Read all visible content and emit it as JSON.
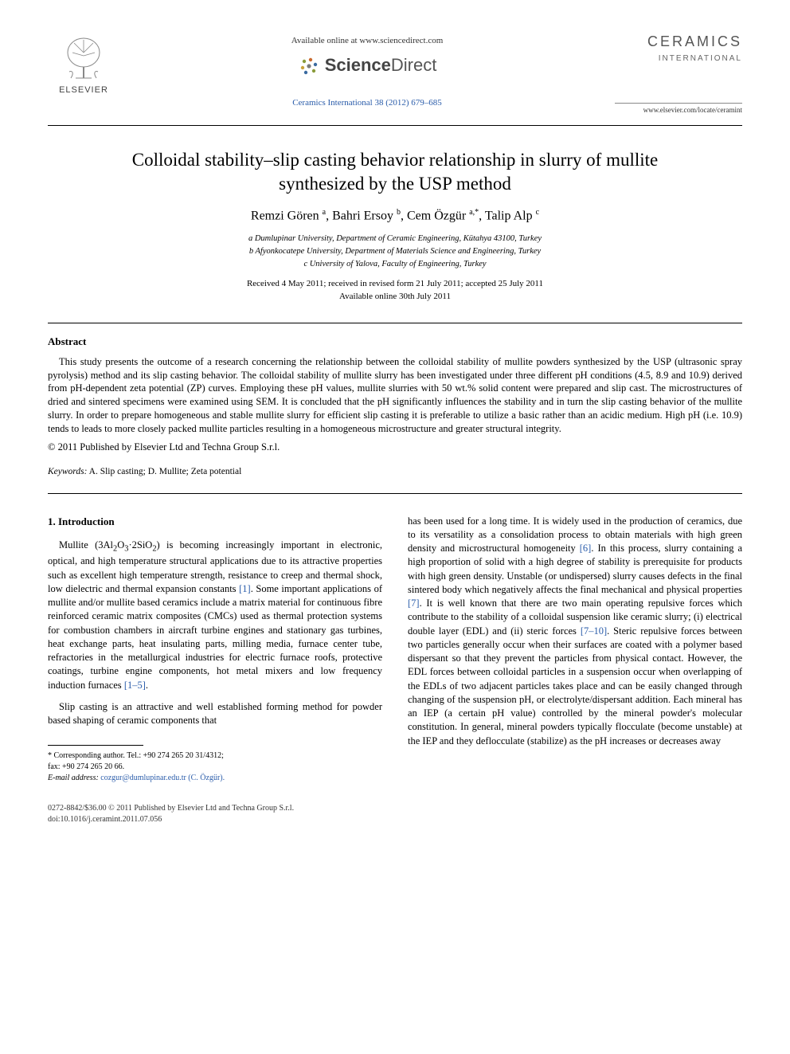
{
  "header": {
    "elsevier_label": "ELSEVIER",
    "available_line": "Available online at www.sciencedirect.com",
    "sd_brand_a": "Science",
    "sd_brand_b": "Direct",
    "citation": "Ceramics International 38 (2012) 679–685",
    "journal_title": "CERAMICS",
    "journal_sub": "INTERNATIONAL",
    "journal_url": "www.elsevier.com/locate/ceramint"
  },
  "article": {
    "title": "Colloidal stability–slip casting behavior relationship in slurry of mullite synthesized by the USP method",
    "authors_html": "Remzi Gören <sup>a</sup>, Bahri Ersoy <sup>b</sup>, Cem Özgür <sup>a,*</sup>, Talip Alp <sup>c</sup>",
    "affiliations": {
      "a": "a Dumlupinar University, Department of Ceramic Engineering, Kütahya 43100, Turkey",
      "b": "b Afyonkocatepe University, Department of Materials Science and Engineering, Turkey",
      "c": "c University of Yalova, Faculty of Engineering, Turkey"
    },
    "dates_line1": "Received 4 May 2011; received in revised form 21 July 2011; accepted 25 July 2011",
    "dates_line2": "Available online 30th July 2011"
  },
  "abstract": {
    "heading": "Abstract",
    "body": "This study presents the outcome of a research concerning the relationship between the colloidal stability of mullite powders synthesized by the USP (ultrasonic spray pyrolysis) method and its slip casting behavior. The colloidal stability of mullite slurry has been investigated under three different pH conditions (4.5, 8.9 and 10.9) derived from pH-dependent zeta potential (ZP) curves. Employing these pH values, mullite slurries with 50 wt.% solid content were prepared and slip cast. The microstructures of dried and sintered specimens were examined using SEM. It is concluded that the pH significantly influences the stability and in turn the slip casting behavior of the mullite slurry. In order to prepare homogeneous and stable mullite slurry for efficient slip casting it is preferable to utilize a basic rather than an acidic medium. High pH (i.e. 10.9) tends to leads to more closely packed mullite particles resulting in a homogeneous microstructure and greater structural integrity.",
    "copyright": "© 2011 Published by Elsevier Ltd and Techna Group S.r.l.",
    "keywords_label": "Keywords:",
    "keywords": " A. Slip casting; D. Mullite; Zeta potential"
  },
  "body": {
    "section_heading": "1. Introduction",
    "col_left_p1_a": "Mullite (3Al",
    "col_left_p1_b": "O",
    "col_left_p1_c": "·2SiO",
    "col_left_p1_d": ") is becoming increasingly important in electronic, optical, and high temperature structural applications due to its attractive properties such as excellent high temperature strength, resistance to creep and thermal shock, low dielectric and thermal expansion constants ",
    "ref1": "[1]",
    "col_left_p1_e": ". Some important applications of mullite and/or mullite based ceramics include a matrix material for continuous fibre reinforced ceramic matrix composites (CMCs) used as thermal protection systems for combustion chambers in aircraft turbine engines and stationary gas turbines, heat exchange parts, heat insulating parts, milling media, furnace center tube, refractories in the metallurgical industries for electric furnace roofs, protective coatings, turbine engine components, hot metal mixers and low frequency induction furnaces ",
    "ref1_5": "[1–5]",
    "period": ".",
    "col_left_p2": "Slip casting is an attractive and well established forming method for powder based shaping of ceramic components that",
    "col_right_p1_a": "has been used for a long time. It is widely used in the production of ceramics, due to its versatility as a consolidation process to obtain materials with high green density and microstructural homogeneity ",
    "ref6": "[6]",
    "col_right_p1_b": ". In this process, slurry containing a high proportion of solid with a high degree of stability is prerequisite for products with high green density. Unstable (or undispersed) slurry causes defects in the final sintered body which negatively affects the final mechanical and physical properties ",
    "ref7": "[7]",
    "col_right_p1_c": ". It is well known that there are two main operating repulsive forces which contribute to the stability of a colloidal suspension like ceramic slurry; (i) electrical double layer (EDL) and (ii) steric forces ",
    "ref7_10": "[7–10]",
    "col_right_p1_d": ". Steric repulsive forces between two particles generally occur when their surfaces are coated with a polymer based dispersant so that they prevent the particles from physical contact. However, the EDL forces between colloidal particles in a suspension occur when overlapping of the EDLs of two adjacent particles takes place and can be easily changed through changing of the suspension pH, or electrolyte/dispersant addition. Each mineral has an IEP (a certain pH value) controlled by the mineral powder's molecular constitution. In general, mineral powders typically flocculate (become unstable) at the IEP and they deflocculate (stabilize) as the pH increases or decreases away"
  },
  "footnote": {
    "corr_label": "* Corresponding author. Tel.: +90 274 265 20 31/4312;",
    "fax": "fax: +90 274 265 20 66.",
    "email_label": "E-mail address:",
    "email": " cozgur@dumlupinar.edu.tr (C. Özgür)."
  },
  "bottom": {
    "left_line1": "0272-8842/$36.00 © 2011 Published by Elsevier Ltd and Techna Group S.r.l.",
    "left_line2": "doi:10.1016/j.ceramint.2011.07.056"
  },
  "colors": {
    "link": "#2a5caa",
    "text": "#000000",
    "grey": "#555555"
  }
}
